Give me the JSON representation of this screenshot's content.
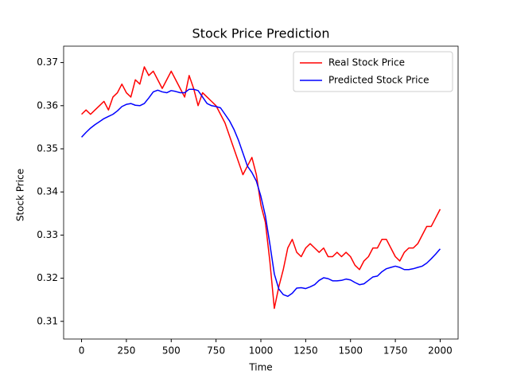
{
  "chart_data": {
    "type": "line",
    "title": "Stock Price Prediction",
    "x_label": "Time",
    "y_label": "Stock Price",
    "x": [
      0,
      25,
      50,
      75,
      100,
      125,
      150,
      175,
      200,
      225,
      250,
      275,
      300,
      325,
      350,
      375,
      400,
      425,
      450,
      475,
      500,
      525,
      550,
      575,
      600,
      625,
      650,
      675,
      700,
      725,
      750,
      775,
      800,
      825,
      850,
      875,
      900,
      925,
      950,
      975,
      1000,
      1025,
      1050,
      1075,
      1100,
      1125,
      1150,
      1175,
      1200,
      1225,
      1250,
      1275,
      1300,
      1325,
      1350,
      1375,
      1400,
      1425,
      1450,
      1475,
      1500,
      1525,
      1550,
      1575,
      1600,
      1625,
      1650,
      1675,
      1700,
      1725,
      1750,
      1775,
      1800,
      1825,
      1850,
      1875,
      1900,
      1925,
      1950,
      1975,
      2000
    ],
    "series": [
      {
        "name": "Real Stock Price",
        "color": "#ff0000",
        "values": [
          0.358,
          0.359,
          0.358,
          0.359,
          0.36,
          0.361,
          0.359,
          0.362,
          0.363,
          0.365,
          0.363,
          0.362,
          0.366,
          0.365,
          0.369,
          0.367,
          0.368,
          0.366,
          0.364,
          0.366,
          0.368,
          0.366,
          0.364,
          0.362,
          0.367,
          0.364,
          0.36,
          0.363,
          0.362,
          0.361,
          0.36,
          0.358,
          0.356,
          0.353,
          0.35,
          0.347,
          0.344,
          0.346,
          0.348,
          0.344,
          0.337,
          0.333,
          0.324,
          0.313,
          0.318,
          0.322,
          0.327,
          0.329,
          0.326,
          0.325,
          0.327,
          0.328,
          0.327,
          0.326,
          0.327,
          0.325,
          0.325,
          0.326,
          0.325,
          0.326,
          0.325,
          0.323,
          0.322,
          0.324,
          0.325,
          0.327,
          0.327,
          0.329,
          0.329,
          0.327,
          0.325,
          0.324,
          0.326,
          0.327,
          0.327,
          0.328,
          0.33,
          0.332,
          0.332,
          0.334,
          0.336
        ]
      },
      {
        "name": "Predicted Stock Price",
        "color": "#0000ff",
        "values": [
          0.3527,
          0.3538,
          0.3548,
          0.3556,
          0.3563,
          0.357,
          0.3575,
          0.358,
          0.3588,
          0.3598,
          0.3603,
          0.3605,
          0.3601,
          0.36,
          0.3605,
          0.3618,
          0.3632,
          0.3636,
          0.3632,
          0.363,
          0.3635,
          0.3633,
          0.363,
          0.363,
          0.3638,
          0.3638,
          0.3635,
          0.362,
          0.3605,
          0.36,
          0.3598,
          0.3595,
          0.358,
          0.3565,
          0.3545,
          0.352,
          0.349,
          0.346,
          0.3445,
          0.3425,
          0.339,
          0.3345,
          0.328,
          0.321,
          0.3175,
          0.3162,
          0.3158,
          0.3165,
          0.3177,
          0.3178,
          0.3176,
          0.318,
          0.3185,
          0.3195,
          0.3201,
          0.3199,
          0.3194,
          0.3194,
          0.3195,
          0.3198,
          0.3196,
          0.319,
          0.3185,
          0.3187,
          0.3195,
          0.3203,
          0.3205,
          0.3215,
          0.3222,
          0.3225,
          0.3228,
          0.3225,
          0.322,
          0.322,
          0.3222,
          0.3225,
          0.3228,
          0.3235,
          0.3245,
          0.3256,
          0.3268
        ]
      }
    ],
    "xlim": [
      -100,
      2100
    ],
    "ylim": [
      0.3059,
      0.3738
    ],
    "xticks": [
      0,
      250,
      500,
      750,
      1000,
      1250,
      1500,
      1750,
      2000
    ],
    "yticks": [
      0.31,
      0.32,
      0.33,
      0.34,
      0.35,
      0.36,
      0.37
    ],
    "legend": "upper right",
    "grid": false
  }
}
